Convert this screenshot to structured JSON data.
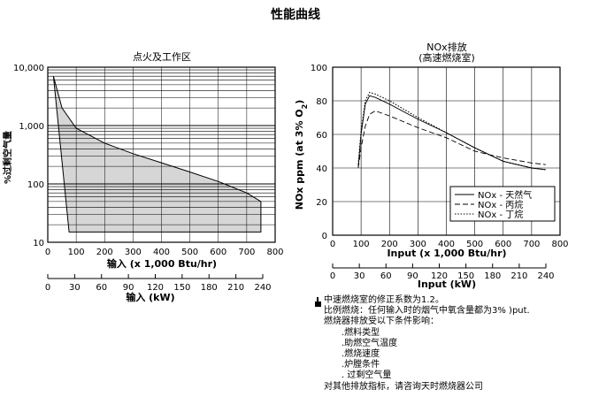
{
  "page": {
    "title": "性能曲线"
  },
  "notes": {
    "line1": "中速燃烧室的修正系数为1.2。",
    "line2": "比例燃烧：任何输入时的烟气中氧含量都为3% )put.",
    "line3": "燃烧器排放受以下条件影响：",
    "items": [
      ".燃料类型",
      ".助燃空气温度",
      ".燃烧速度",
      ".炉膛条件",
      ". 过剩空气量"
    ],
    "line4": "对其他排放指标，请咨询天时燃烧器公司"
  },
  "chart_data": [
    {
      "type": "area",
      "title": "点火及工作区",
      "ylabel": "%过剩空气量",
      "xlabel": "输入 (x 1,000 Btu/hr)",
      "x_ticks": [
        "0",
        "100",
        "200",
        "300",
        "400",
        "500",
        "600",
        "700",
        "800"
      ],
      "xlim": [
        0,
        800
      ],
      "y_scale": "log",
      "ylim": [
        10,
        10000
      ],
      "y_ticks": [
        "10,000",
        "1,000",
        "100",
        "10"
      ],
      "x2label": "输入 (kW)",
      "x2_ticks": [
        "0",
        "30",
        "60",
        "90",
        "120",
        "150",
        "180",
        "210",
        "240"
      ],
      "x2lim": [
        0,
        240
      ],
      "grid": true,
      "region": {
        "upper": [
          [
            20,
            7000
          ],
          [
            50,
            2000
          ],
          [
            100,
            900
          ],
          [
            200,
            500
          ],
          [
            300,
            330
          ],
          [
            400,
            230
          ],
          [
            500,
            160
          ],
          [
            600,
            110
          ],
          [
            700,
            70
          ],
          [
            750,
            50
          ]
        ],
        "lower": [
          [
            20,
            7000
          ],
          [
            75,
            15
          ],
          [
            750,
            15
          ]
        ]
      }
    },
    {
      "type": "line",
      "title": "NOx排放",
      "subtitle": "(高速燃烧室)",
      "ylabel": "NOx ppm (at 3% O2)",
      "xlabel": "Input (x 1,000 Btu/hr)",
      "xlim": [
        0,
        800
      ],
      "ylim": [
        0,
        100
      ],
      "x_ticks": [
        "0",
        "100",
        "200",
        "300",
        "400",
        "500",
        "600",
        "700",
        "800"
      ],
      "y_ticks": [
        "0",
        "20",
        "40",
        "60",
        "80",
        "100"
      ],
      "x2label": "Input (kW)",
      "x2lim": [
        0,
        240
      ],
      "x2_ticks": [
        "0",
        "30",
        "60",
        "90",
        "120",
        "150",
        "180",
        "210",
        "240"
      ],
      "grid": true,
      "legend": "bottom-right",
      "series": [
        {
          "name": "NOx - 天然气",
          "style": "solid",
          "x": [
            90,
            100,
            115,
            130,
            150,
            200,
            300,
            400,
            500,
            600,
            700,
            750
          ],
          "y": [
            40,
            60,
            78,
            83,
            82,
            78,
            69,
            61,
            52,
            44,
            40,
            39
          ]
        },
        {
          "name": "NOx - 丙烷",
          "style": "dashed",
          "x": [
            90,
            100,
            115,
            130,
            150,
            200,
            300,
            400,
            500,
            600,
            700,
            750
          ],
          "y": [
            40,
            52,
            65,
            72,
            74,
            71,
            64,
            58,
            50,
            46,
            43,
            42
          ]
        },
        {
          "name": "NOx - 丁烷",
          "style": "dotted",
          "x": [
            90,
            100,
            115,
            130,
            150,
            200,
            300,
            400,
            500,
            600,
            700,
            750
          ],
          "y": [
            42,
            62,
            80,
            85,
            84,
            80,
            70,
            61,
            52,
            44,
            40,
            39
          ]
        }
      ]
    }
  ]
}
